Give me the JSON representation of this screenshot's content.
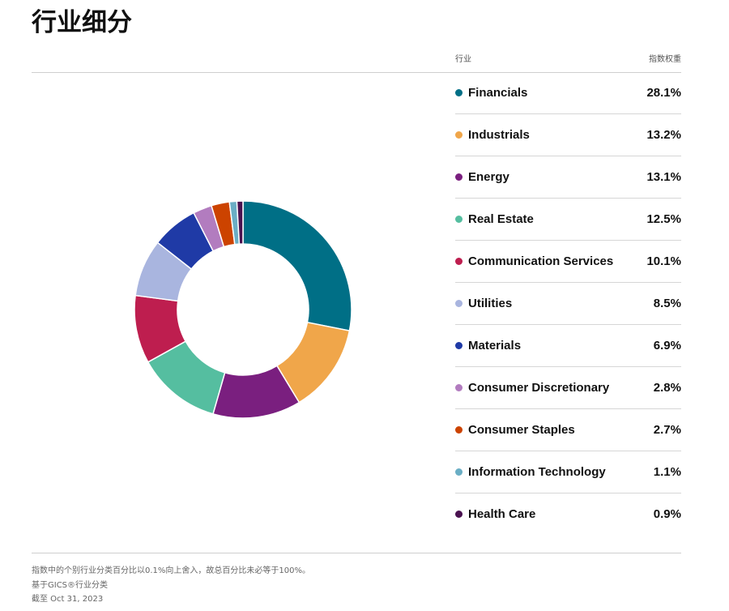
{
  "page": {
    "title": "行业细分",
    "table_header": {
      "col_sector": "行业",
      "col_weight": "指数权重"
    },
    "footnotes": [
      "指数中的个别行业分类百分比以0.1%向上舍入，故总百分比未必等于100%。",
      "基于GICS®行业分类",
      "截至 Oct 31, 2023"
    ]
  },
  "chart_data": {
    "type": "pie",
    "donut": true,
    "legend_position": "right",
    "categories": [
      "Financials",
      "Industrials",
      "Energy",
      "Real Estate",
      "Communication Services",
      "Utilities",
      "Materials",
      "Consumer Discretionary",
      "Consumer Staples",
      "Information Technology",
      "Health Care"
    ],
    "values": [
      28.1,
      13.2,
      13.1,
      12.5,
      10.1,
      8.5,
      6.9,
      2.8,
      2.7,
      1.1,
      0.9
    ],
    "labels": [
      "28.1%",
      "13.2%",
      "13.1%",
      "12.5%",
      "10.1%",
      "8.5%",
      "6.9%",
      "2.8%",
      "2.7%",
      "1.1%",
      "0.9%"
    ],
    "colors": [
      "#006f86",
      "#f0a64a",
      "#7a1f7f",
      "#55bea0",
      "#be1e4f",
      "#a9b5df",
      "#1f3aa6",
      "#b27cbf",
      "#cc4300",
      "#6aaec5",
      "#4a1250"
    ]
  }
}
